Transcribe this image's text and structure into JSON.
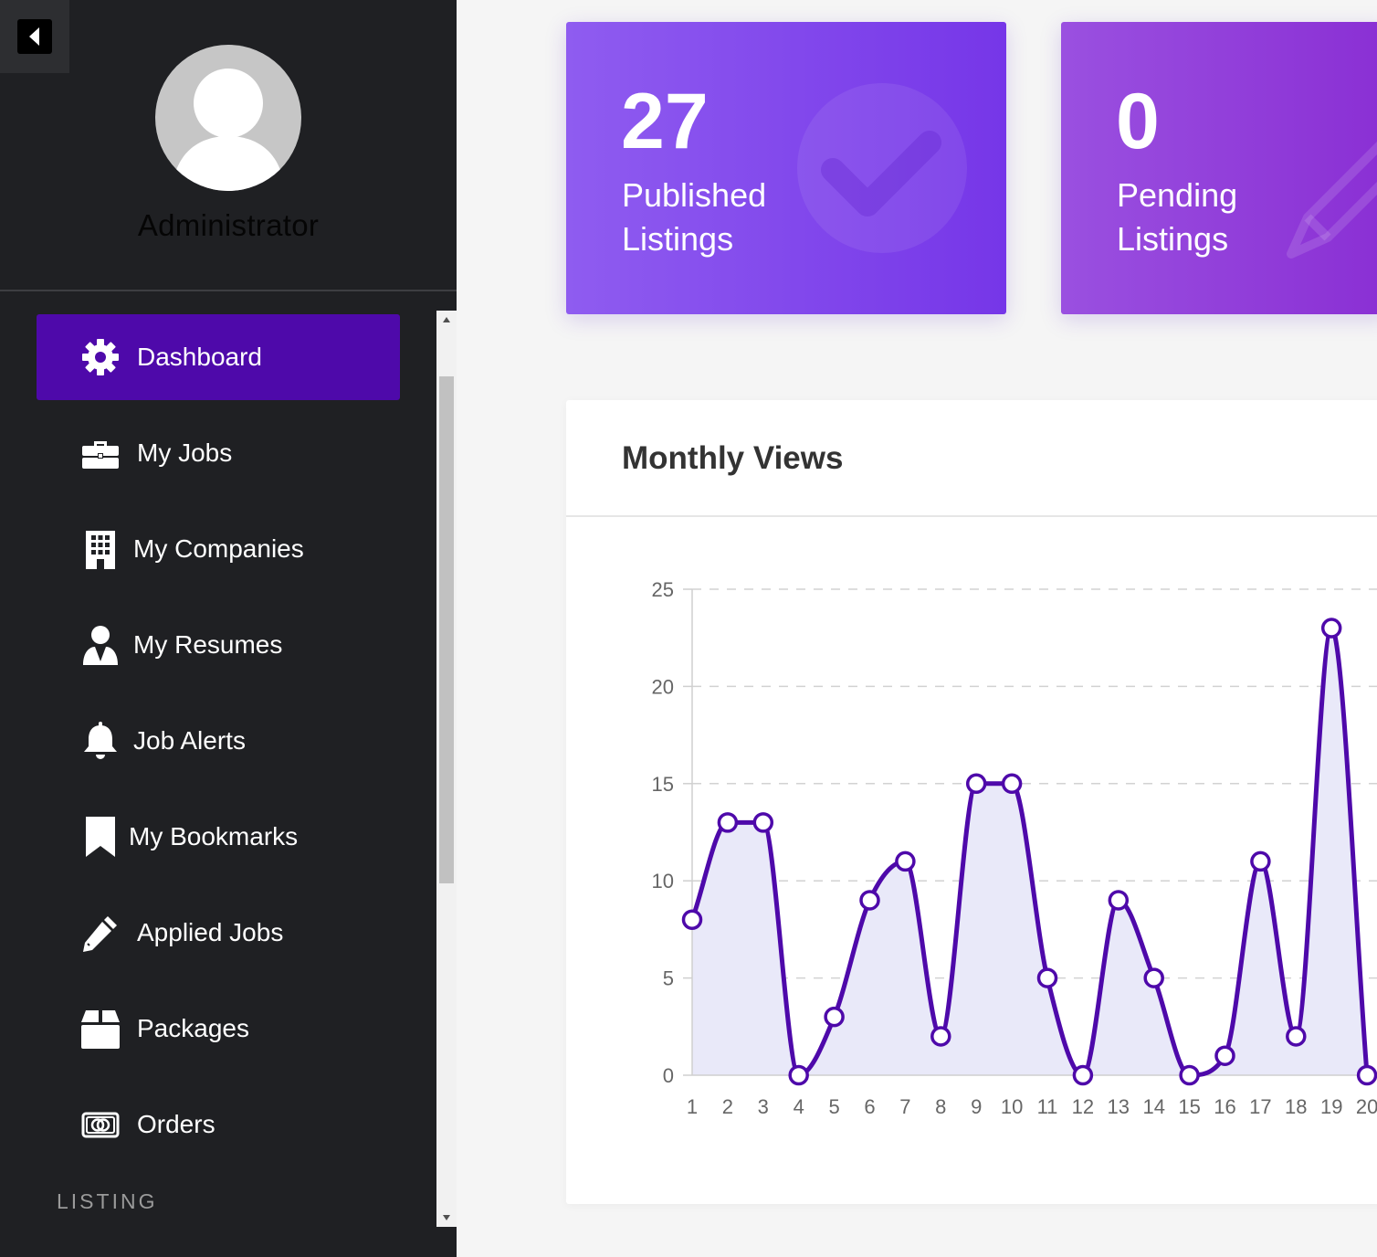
{
  "sidebar": {
    "user_name": "Administrator",
    "menu": [
      {
        "label": "Dashboard",
        "icon": "gear-icon",
        "active": true
      },
      {
        "label": "My Jobs",
        "icon": "briefcase-icon",
        "active": false
      },
      {
        "label": "My Companies",
        "icon": "building-icon",
        "active": false
      },
      {
        "label": "My Resumes",
        "icon": "user-tie-icon",
        "active": false
      },
      {
        "label": "Job Alerts",
        "icon": "bell-icon",
        "active": false
      },
      {
        "label": "My Bookmarks",
        "icon": "bookmark-icon",
        "active": false
      },
      {
        "label": "Applied Jobs",
        "icon": "pencil-icon",
        "active": false
      },
      {
        "label": "Packages",
        "icon": "box-icon",
        "active": false
      },
      {
        "label": "Orders",
        "icon": "money-bill-icon",
        "active": false
      }
    ],
    "section_label": "LISTING"
  },
  "stats": {
    "published": {
      "value": "27",
      "label_line1": "Published",
      "label_line2": "Listings",
      "icon": "check-circle-icon"
    },
    "pending": {
      "value": "0",
      "label_line1": "Pending",
      "label_line2": "Listings",
      "icon": "pencil-icon"
    }
  },
  "colors": {
    "sidebar_bg": "#1f2023",
    "active_item": "#4e09aa",
    "line": "#4e09aa",
    "fill": "#e9e9f9"
  },
  "chart_panel": {
    "title": "Monthly Views"
  },
  "chart_data": {
    "type": "line",
    "title": "Monthly Views",
    "x": [
      1,
      2,
      3,
      4,
      5,
      6,
      7,
      8,
      9,
      10,
      11,
      12,
      13,
      14,
      15,
      16,
      17,
      18,
      19,
      20
    ],
    "series": [
      {
        "values": [
          8,
          13,
          13,
          0,
          3,
          9,
          11,
          2,
          15,
          15,
          5,
          0,
          9,
          5,
          0,
          1,
          11,
          2,
          23,
          0
        ]
      }
    ],
    "y_ticks": [
      0,
      5,
      10,
      15,
      20,
      25
    ],
    "ylim": [
      0,
      25
    ],
    "grid": true,
    "filled": true,
    "smooth": true
  }
}
